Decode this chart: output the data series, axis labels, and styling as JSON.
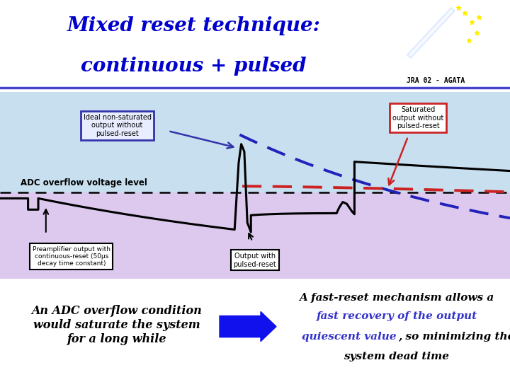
{
  "title_line1": "Mixed reset technique:",
  "title_line2": "continuous + pulsed",
  "title_color": "#0000cc",
  "title_fontsize": 20,
  "subtitle_jra": "JRA 02 - AGATA",
  "bg_white": "#ffffff",
  "bg_chart_top": "#cce0f5",
  "bg_chart_bottom": "#ddc8ee",
  "bg_bottom_panel": "#f0c8f0",
  "adc_label": "ADC overflow voltage level",
  "box_ideal_text": "Ideal non-saturated\noutput without\npulsed-reset",
  "box_saturated_text": "Saturated\noutput without\npulsed-reset",
  "box_preamp_text": "Preamplifier output with\ncontinuous-reset (50μs\ndecay time constant)",
  "box_pulsed_text": "Output with\npulsed-reset",
  "bottom_left_text": "An ADC overflow condition\nwould saturate the system\nfor a long while",
  "bottom_right_line1": "A fast-reset mechanism allows a",
  "bottom_right_line2": "fast recovery of the output",
  "bottom_right_line3a": "quiescent value",
  "bottom_right_line3b": ", so minimizing the",
  "bottom_right_line4": "system dead time",
  "arrow_color": "#1111ee",
  "line_black": "#000000",
  "line_blue_dashed": "#2222bb",
  "line_red_dashed": "#cc2222",
  "box_ideal_edgecolor": "#3333aa",
  "box_ideal_facecolor": "#e8eeff",
  "box_saturated_edgecolor": "#cc2222",
  "box_saturated_facecolor": "#ffffff",
  "box_preamp_edgecolor": "#000000",
  "box_preamp_facecolor": "#ffffff",
  "box_pulsed_edgecolor": "#000000",
  "box_pulsed_facecolor": "#ffffff",
  "font_italic_color": "#3333cc"
}
